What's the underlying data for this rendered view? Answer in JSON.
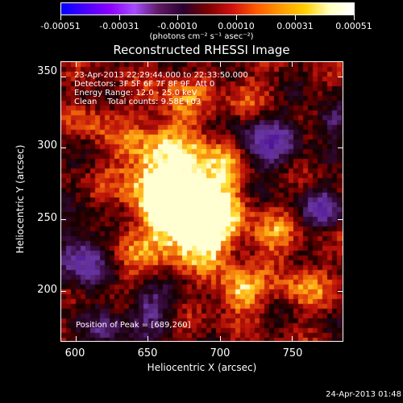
{
  "colorbar": {
    "gradient": [
      "#0000ff",
      "#4b00ff",
      "#8c00ff",
      "#a64dff",
      "#5e1a63",
      "#2a0030",
      "#7a0000",
      "#d01010",
      "#ff5a00",
      "#ff9a00",
      "#ffd000",
      "#ffffc0",
      "#ffffff"
    ],
    "tick_labels": [
      "-0.00051",
      "-0.00031",
      "-0.00010",
      "0.00010",
      "0.00031",
      "0.00051"
    ]
  },
  "units": "(photons cm⁻² s⁻¹ asec⁻²)",
  "title": "Reconstructed RHESSI Image",
  "annotations": {
    "line1": "23-Apr-2013 22:29:44.000 to 22:33:50.000",
    "line2": "Detectors: 3F 5F 6F 7F 8F 9F  Att 0",
    "line3": "Energy Range: 12.0 - 25.0 keV",
    "line4": "Clean    Total counts: 9.58E+03",
    "peak": "Position of Peak = [689,260]"
  },
  "axes": {
    "x_label": "Heliocentric X (arcsec)",
    "y_label": "Heliocentric Y (arcsec)",
    "x_ticks": [
      "600",
      "650",
      "700",
      "750"
    ],
    "y_ticks": [
      "200",
      "250",
      "300",
      "350"
    ],
    "x_range": [
      590,
      785
    ],
    "y_range": [
      165,
      360
    ]
  },
  "timestamp": "24-Apr-2013 01:48"
}
